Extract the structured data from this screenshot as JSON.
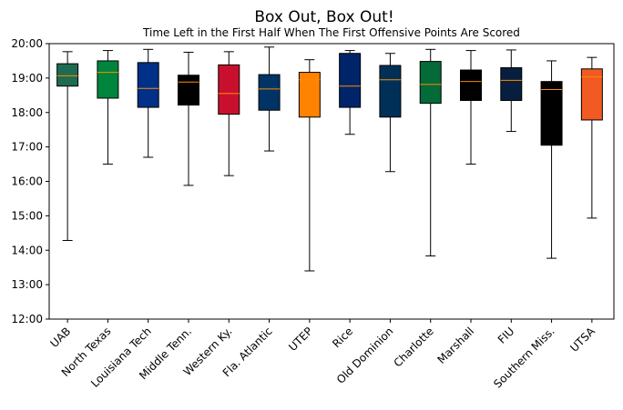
{
  "chart_data": {
    "type": "box",
    "title": "Box Out, Box Out!",
    "subtitle": "Time Left in the First Half When The First Offensive Points Are Scored",
    "xlabel": "",
    "ylabel": "",
    "ylim": [
      720,
      1200
    ],
    "yticks": [
      {
        "value": 720,
        "label": "12:00"
      },
      {
        "value": 780,
        "label": "13:00"
      },
      {
        "value": 840,
        "label": "14:00"
      },
      {
        "value": 900,
        "label": "15:00"
      },
      {
        "value": 960,
        "label": "16:00"
      },
      {
        "value": 1020,
        "label": "17:00"
      },
      {
        "value": 1080,
        "label": "18:00"
      },
      {
        "value": 1140,
        "label": "19:00"
      },
      {
        "value": 1200,
        "label": "20:00"
      }
    ],
    "value_unit": "seconds remaining in first half",
    "grid": false,
    "boxes": [
      {
        "team": "UAB",
        "color": "#1e6b52",
        "whisker_low": 857,
        "q1": 1126,
        "median": 1144,
        "q3": 1165,
        "whisker_high": 1186
      },
      {
        "team": "North Texas",
        "color": "#00853e",
        "whisker_low": 990,
        "q1": 1105,
        "median": 1150,
        "q3": 1170,
        "whisker_high": 1188
      },
      {
        "team": "Louisiana Tech",
        "color": "#003087",
        "whisker_low": 1002,
        "q1": 1089,
        "median": 1122,
        "q3": 1167,
        "whisker_high": 1190
      },
      {
        "team": "Middle Tenn.",
        "color": "#000000",
        "whisker_low": 953,
        "q1": 1093,
        "median": 1133,
        "q3": 1145,
        "whisker_high": 1185
      },
      {
        "team": "Western Ky.",
        "color": "#c8102e",
        "whisker_low": 970,
        "q1": 1077,
        "median": 1113,
        "q3": 1163,
        "whisker_high": 1186
      },
      {
        "team": "Fla. Atlantic",
        "color": "#003366",
        "whisker_low": 1013,
        "q1": 1084,
        "median": 1121,
        "q3": 1146,
        "whisker_high": 1194
      },
      {
        "team": "UTEP",
        "color": "#ff8200",
        "whisker_low": 804,
        "q1": 1072,
        "median": 1137,
        "q3": 1150,
        "whisker_high": 1172
      },
      {
        "team": "Rice",
        "color": "#002469",
        "whisker_low": 1042,
        "q1": 1089,
        "median": 1126,
        "q3": 1183,
        "whisker_high": 1188
      },
      {
        "team": "Old Dominion",
        "color": "#003057",
        "whisker_low": 977,
        "q1": 1072,
        "median": 1137,
        "q3": 1162,
        "whisker_high": 1183
      },
      {
        "team": "Charlotte",
        "color": "#046a38",
        "whisker_low": 830,
        "q1": 1096,
        "median": 1129,
        "q3": 1169,
        "whisker_high": 1190
      },
      {
        "team": "Marshall",
        "color": "#000000",
        "whisker_low": 990,
        "q1": 1101,
        "median": 1134,
        "q3": 1154,
        "whisker_high": 1188
      },
      {
        "team": "FIU",
        "color": "#081e3f",
        "whisker_low": 1047,
        "q1": 1101,
        "median": 1136,
        "q3": 1158,
        "whisker_high": 1189
      },
      {
        "team": "Southern Miss.",
        "color": "#000000",
        "whisker_low": 826,
        "q1": 1023,
        "median": 1120,
        "q3": 1134,
        "whisker_high": 1170
      },
      {
        "team": "UTSA",
        "color": "#f15a22",
        "whisker_low": 896,
        "q1": 1067,
        "median": 1142,
        "q3": 1156,
        "whisker_high": 1176
      }
    ],
    "median_line_color": "#ff8c00"
  }
}
